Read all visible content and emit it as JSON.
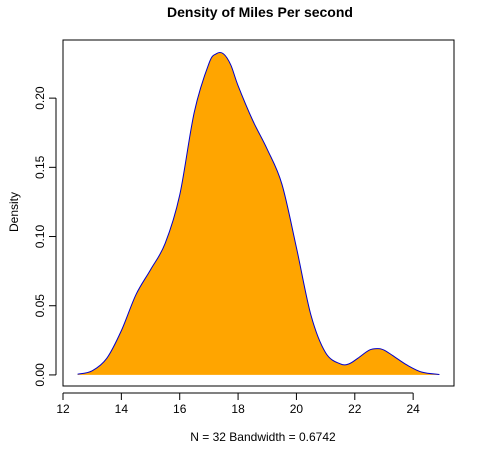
{
  "chart_data": {
    "type": "area",
    "title": "Density of Miles Per second",
    "xlabel": "N = 32   Bandwidth = 0.6742",
    "ylabel": "Density",
    "xlim": [
      12,
      25.4
    ],
    "ylim": [
      -0.008,
      0.242
    ],
    "xticks": [
      "12",
      "14",
      "16",
      "18",
      "20",
      "22",
      "24"
    ],
    "yticks": [
      "0.00",
      "0.05",
      "0.10",
      "0.15",
      "0.20"
    ],
    "grid": false,
    "legend": "none",
    "fill_color": "#FFA500",
    "line_color": "#0000CD",
    "x": [
      12.5,
      13.0,
      13.5,
      14.0,
      14.5,
      15.0,
      15.5,
      16.0,
      16.5,
      17.0,
      17.25,
      17.5,
      17.75,
      18.0,
      18.5,
      19.0,
      19.5,
      20.0,
      20.5,
      21.0,
      21.5,
      21.8,
      22.1,
      22.5,
      22.8,
      23.0,
      23.3,
      23.8,
      24.3,
      24.9
    ],
    "y": [
      0.0005,
      0.003,
      0.012,
      0.032,
      0.058,
      0.076,
      0.095,
      0.13,
      0.19,
      0.225,
      0.232,
      0.232,
      0.224,
      0.209,
      0.184,
      0.163,
      0.138,
      0.092,
      0.043,
      0.016,
      0.008,
      0.008,
      0.012,
      0.018,
      0.019,
      0.018,
      0.014,
      0.007,
      0.002,
      0.0003
    ]
  }
}
